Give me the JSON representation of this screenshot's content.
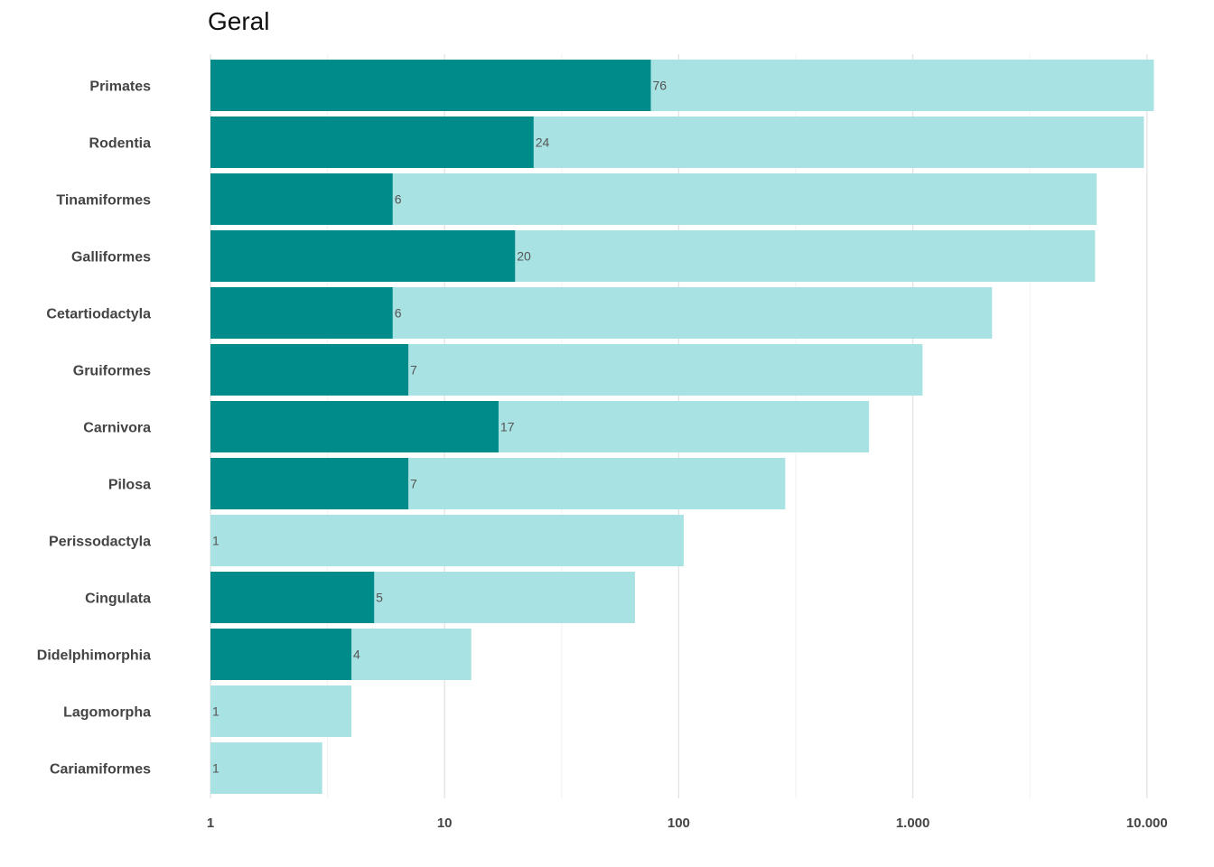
{
  "chart_data": {
    "type": "bar",
    "orientation": "horizontal",
    "title": "Geral",
    "xlabel": "",
    "ylabel": "",
    "x_scale": "log10",
    "xlim": [
      1,
      11000
    ],
    "x_ticks": [
      1,
      10,
      100,
      1000,
      10000
    ],
    "x_tick_labels": [
      "1",
      "10",
      "100",
      "1.000",
      "10.000"
    ],
    "grid": "vertical",
    "legend": "none",
    "colors": {
      "foreground": "#008b8b",
      "background": "#a8e2e2"
    },
    "categories": [
      "Primates",
      "Rodentia",
      "Tinamiformes",
      "Galliformes",
      "Cetartiodactyla",
      "Gruiformes",
      "Carnivora",
      "Pilosa",
      "Perissodactyla",
      "Cingulata",
      "Didelphimorphia",
      "Lagomorpha",
      "Cariamiformes"
    ],
    "series": [
      {
        "values": [
          10700,
          9700,
          6100,
          6000,
          2180,
          1100,
          650,
          285,
          105,
          65,
          13,
          4,
          3
        ]
      },
      {
        "values": [
          76,
          24,
          6,
          20,
          6,
          7,
          17,
          7,
          1,
          5,
          4,
          1,
          1
        ]
      }
    ],
    "data_labels": [
      "76",
      "24",
      "6",
      "20",
      "6",
      "7",
      "17",
      "7",
      "1",
      "5",
      "4",
      "1",
      "1"
    ]
  }
}
